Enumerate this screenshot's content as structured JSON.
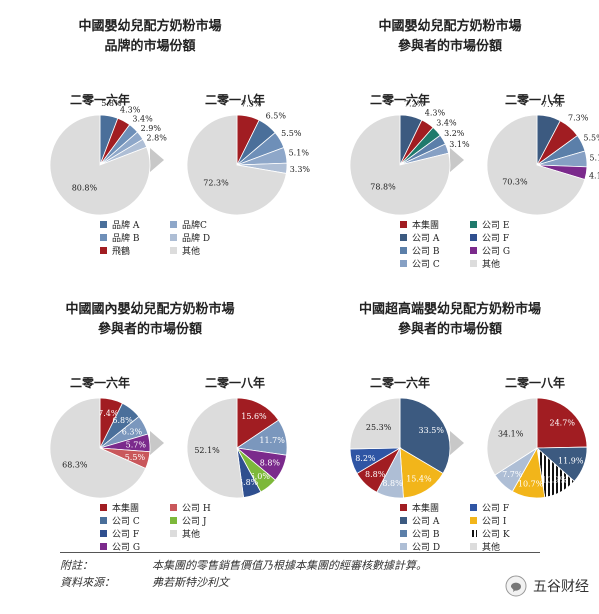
{
  "charts_meta": {
    "year_left": "二零一六年",
    "year_right": "二零一八年"
  },
  "chart_data": [
    {
      "type": "pie",
      "title": "中國嬰幼兒配方奶粉市場\n品牌的市場份額",
      "pies": [
        {
          "year": "二零一六年",
          "slices": [
            {
              "name": "品牌A",
              "value": 5.8,
              "label": "5.8%",
              "color": "#4a6f9a"
            },
            {
              "name": "飛鷗",
              "value": 4.3,
              "label": "4.3%",
              "color": "#a11d22"
            },
            {
              "name": "品牌B",
              "value": 3.4,
              "label": "3.4%",
              "color": "#6e8fb8"
            },
            {
              "name": "品牌C",
              "value": 2.9,
              "label": "2.9%",
              "color": "#8ea7c9"
            },
            {
              "name": "品牌D",
              "value": 2.8,
              "label": "2.8%",
              "color": "#aebed5"
            },
            {
              "name": "其他",
              "value": 80.8,
              "label": "80.8%",
              "color": "#dcdcdc"
            }
          ]
        },
        {
          "year": "二零一八年",
          "slices": [
            {
              "name": "飛鷗",
              "value": 7.3,
              "label": "7.3%",
              "color": "#a11d22"
            },
            {
              "name": "品牌A",
              "value": 6.5,
              "label": "6.5%",
              "color": "#4a6f9a"
            },
            {
              "name": "品牌B",
              "value": 5.5,
              "label": "5.5%",
              "color": "#6e8fb8"
            },
            {
              "name": "品牌C",
              "value": 5.1,
              "label": "5.1%",
              "color": "#8ea7c9"
            },
            {
              "name": "品牌D",
              "value": 3.3,
              "label": "3.3%",
              "color": "#aebed5"
            },
            {
              "name": "其他",
              "value": 72.3,
              "label": "72.3%",
              "color": "#dcdcdc"
            }
          ]
        }
      ],
      "legend": [
        {
          "label": "品牌 A",
          "color": "#4a6f9a"
        },
        {
          "label": "品牌C",
          "color": "#8ea7c9"
        },
        {
          "label": "品牌 B",
          "color": "#6e8fb8"
        },
        {
          "label": "品牌 D",
          "color": "#aebed5"
        },
        {
          "label": "飛鶴",
          "color": "#a11d22"
        },
        {
          "label": "其他",
          "color": "#dcdcdc"
        }
      ]
    },
    {
      "type": "pie",
      "title": "中國嬰幼兒配方奶粉市場\n參與者的市場份額",
      "pies": [
        {
          "year": "二零一六年",
          "slices": [
            {
              "name": "公司A",
              "value": 7.2,
              "label": "7.2%",
              "color": "#3c5a80"
            },
            {
              "name": "本集團",
              "value": 4.3,
              "label": "4.3%",
              "color": "#a11d22"
            },
            {
              "name": "公司E",
              "value": 3.4,
              "label": "3.4%",
              "color": "#1f7a6c"
            },
            {
              "name": "公司B",
              "value": 3.2,
              "label": "3.2%",
              "color": "#5b7fa9"
            },
            {
              "name": "公司C",
              "value": 3.1,
              "label": "3.1%",
              "color": "#86a0c4"
            },
            {
              "name": "其他",
              "value": 78.8,
              "label": "78.8%",
              "color": "#dcdcdc"
            }
          ]
        },
        {
          "year": "二零一八年",
          "slices": [
            {
              "name": "公司A",
              "value": 7.7,
              "label": "7.7%",
              "color": "#3c5a80"
            },
            {
              "name": "本集團",
              "value": 7.3,
              "label": "7.3%",
              "color": "#a11d22"
            },
            {
              "name": "公司B",
              "value": 5.5,
              "label": "5.5%",
              "color": "#5b7fa9"
            },
            {
              "name": "公司C",
              "value": 5.1,
              "label": "5.1%",
              "color": "#86a0c4"
            },
            {
              "name": "公司G",
              "value": 4.1,
              "label": "4.1%",
              "color": "#7b2a8c"
            },
            {
              "name": "其他",
              "value": 70.3,
              "label": "70.3%",
              "color": "#dcdcdc"
            }
          ]
        }
      ],
      "legend": [
        {
          "label": "本集團",
          "color": "#a11d22"
        },
        {
          "label": "公司 E",
          "color": "#1f7a6c"
        },
        {
          "label": "公司 A",
          "color": "#3c5a80"
        },
        {
          "label": "公司 F",
          "color": "#2f4f8f"
        },
        {
          "label": "公司 B",
          "color": "#5b7fa9"
        },
        {
          "label": "公司 G",
          "color": "#7b2a8c"
        },
        {
          "label": "公司 C",
          "color": "#86a0c4"
        },
        {
          "label": "其他",
          "color": "#dcdcdc"
        }
      ]
    },
    {
      "type": "pie",
      "title": "中國國內嬰幼兒配方奶粉市場\n參與者的市場份額",
      "pies": [
        {
          "year": "二零一六年",
          "slices": [
            {
              "name": "本集團",
              "value": 7.4,
              "label": "7.4%",
              "color": "#a11d22"
            },
            {
              "name": "公司C",
              "value": 6.8,
              "label": "6.8%",
              "color": "#4a6f9a"
            },
            {
              "name": "公司F",
              "value": 6.3,
              "label": "6.3%",
              "color": "#7b97bd"
            },
            {
              "name": "公司G",
              "value": 5.7,
              "label": "5.7%",
              "color": "#7b2a8c"
            },
            {
              "name": "公司H",
              "value": 5.5,
              "label": "5.5%",
              "color": "#c9575b"
            },
            {
              "name": "其他",
              "value": 68.3,
              "label": "68.3%",
              "color": "#dcdcdc"
            }
          ]
        },
        {
          "year": "二零一八年",
          "slices": [
            {
              "name": "本集團",
              "value": 15.6,
              "label": "15.6%",
              "color": "#a11d22"
            },
            {
              "name": "公司C",
              "value": 11.7,
              "label": "11.7%",
              "color": "#7b97bd"
            },
            {
              "name": "公司G",
              "value": 8.8,
              "label": "8.8%",
              "color": "#7b2a8c"
            },
            {
              "name": "公司J",
              "value": 6.0,
              "label": "6.0%",
              "color": "#7db83a"
            },
            {
              "name": "公司F",
              "value": 5.8,
              "label": "5.8%",
              "color": "#2f4f8f"
            },
            {
              "name": "其他",
              "value": 52.1,
              "label": "52.1%",
              "color": "#dcdcdc"
            }
          ]
        }
      ],
      "legend": [
        {
          "label": "本集團",
          "color": "#a11d22"
        },
        {
          "label": "公司 H",
          "color": "#c9575b"
        },
        {
          "label": "公司 C",
          "color": "#4a6f9a"
        },
        {
          "label": "公司 J",
          "color": "#7db83a"
        },
        {
          "label": "公司 F",
          "color": "#2f4f8f"
        },
        {
          "label": "其他",
          "color": "#dcdcdc"
        },
        {
          "label": "公司 G",
          "color": "#7b2a8c"
        }
      ]
    },
    {
      "type": "pie",
      "title": "中國超高端嬰幼兒配方奶粉市場\n參與者的市場份額",
      "pies": [
        {
          "year": "二零一六年",
          "slices": [
            {
              "name": "公司A",
              "value": 33.5,
              "label": "33.5%",
              "color": "#3c5a80"
            },
            {
              "name": "公司I",
              "value": 15.4,
              "label": "15.4%",
              "color": "#f2b51a"
            },
            {
              "name": "公司D",
              "value": 8.8,
              "label": "8.8%",
              "color": "#aebed5"
            },
            {
              "name": "本集團",
              "value": 8.8,
              "label": "8.8%",
              "color": "#a11d22"
            },
            {
              "name": "公司F",
              "value": 8.2,
              "label": "8.2%",
              "color": "#2f55a4"
            },
            {
              "name": "其他",
              "value": 25.3,
              "label": "25.3%",
              "color": "#dcdcdc"
            }
          ]
        },
        {
          "year": "二零一八年",
          "slices": [
            {
              "name": "本集團",
              "value": 24.7,
              "label": "24.7%",
              "color": "#a11d22"
            },
            {
              "name": "公司A",
              "value": 11.9,
              "label": "11.9%",
              "color": "#3c5a80"
            },
            {
              "name": "公司K",
              "value": 10.9,
              "label": "10.9%",
              "color": "#111111",
              "striped": true
            },
            {
              "name": "公司I",
              "value": 10.7,
              "label": "10.7%",
              "color": "#f2b51a"
            },
            {
              "name": "公司D",
              "value": 7.7,
              "label": "7.7%",
              "color": "#aebed5"
            },
            {
              "name": "其他",
              "value": 34.1,
              "label": "34.1%",
              "color": "#dcdcdc"
            }
          ]
        }
      ],
      "legend": [
        {
          "label": "本集團",
          "color": "#a11d22"
        },
        {
          "label": "公司 F",
          "color": "#2f55a4"
        },
        {
          "label": "公司 A",
          "color": "#3c5a80"
        },
        {
          "label": "公司 I",
          "color": "#f2b51a"
        },
        {
          "label": "公司 B",
          "color": "#5b7fa9"
        },
        {
          "label": "公司 K",
          "color": "#111111",
          "striped": true
        },
        {
          "label": "公司 D",
          "color": "#aebed5"
        },
        {
          "label": "其他",
          "color": "#dcdcdc"
        }
      ]
    }
  ],
  "footer": {
    "note_label": "附註：",
    "note_text": "本集團的零售銷售價值乃根據本集團的經審核數據計算。",
    "source_label": "資料來源：",
    "source_text": "弗若斯特沙利文"
  },
  "watermark": {
    "text": "五谷财经"
  }
}
